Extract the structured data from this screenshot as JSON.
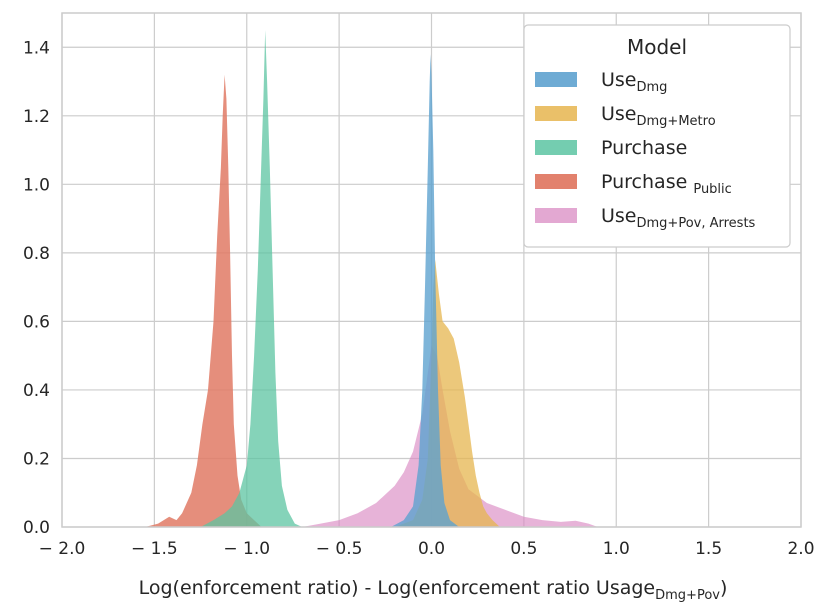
{
  "chart_data": {
    "type": "area",
    "subtype": "kde-density",
    "title": "",
    "xlabel": {
      "main": "Log(enforcement ratio) - Log(enforcement ratio Usage",
      "sub": "Dmg+Pov",
      "suffix": ")"
    },
    "ylabel": "",
    "xlim": [
      -2.0,
      2.0
    ],
    "ylim": [
      0.0,
      1.5
    ],
    "xticks": [
      -2.0,
      -1.5,
      -1.0,
      -0.5,
      0.0,
      0.5,
      1.0,
      1.5,
      2.0
    ],
    "xtick_labels": [
      "− 2.0",
      "− 1.5",
      "− 1.0",
      "− 0.5",
      "0.0",
      "0.5",
      "1.0",
      "1.5",
      "2.0"
    ],
    "yticks": [
      0.0,
      0.2,
      0.4,
      0.6,
      0.8,
      1.0,
      1.2,
      1.4
    ],
    "ytick_labels": [
      "0.0",
      "0.2",
      "0.4",
      "0.6",
      "0.8",
      "1.0",
      "1.2",
      "1.4"
    ],
    "grid": true,
    "legend": {
      "title": "Model",
      "placement": "top-right"
    },
    "series": [
      {
        "name": "Use",
        "name_sub": "Dmg+Pov, Arrests",
        "name_sep": "",
        "color": "#DA8BC3",
        "opacity": 0.65,
        "points": [
          [
            -0.7,
            0.0
          ],
          [
            -0.6,
            0.01
          ],
          [
            -0.5,
            0.02
          ],
          [
            -0.4,
            0.04
          ],
          [
            -0.3,
            0.07
          ],
          [
            -0.2,
            0.12
          ],
          [
            -0.15,
            0.16
          ],
          [
            -0.1,
            0.22
          ],
          [
            -0.05,
            0.33
          ],
          [
            -0.02,
            0.45
          ],
          [
            0.0,
            0.53
          ],
          [
            0.03,
            0.5
          ],
          [
            0.06,
            0.4
          ],
          [
            0.1,
            0.28
          ],
          [
            0.15,
            0.17
          ],
          [
            0.2,
            0.11
          ],
          [
            0.3,
            0.07
          ],
          [
            0.4,
            0.05
          ],
          [
            0.5,
            0.03
          ],
          [
            0.6,
            0.02
          ],
          [
            0.7,
            0.015
          ],
          [
            0.78,
            0.018
          ],
          [
            0.85,
            0.01
          ],
          [
            0.9,
            0.0
          ]
        ]
      },
      {
        "name": "Use",
        "name_sub": "Dmg+Metro",
        "name_sep": "",
        "color": "#E6B54F",
        "opacity": 0.75,
        "points": [
          [
            -0.2,
            0.0
          ],
          [
            -0.1,
            0.02
          ],
          [
            -0.05,
            0.08
          ],
          [
            -0.02,
            0.2
          ],
          [
            0.0,
            0.5
          ],
          [
            0.01,
            0.7
          ],
          [
            0.02,
            0.78
          ],
          [
            0.04,
            0.68
          ],
          [
            0.06,
            0.6
          ],
          [
            0.09,
            0.58
          ],
          [
            0.12,
            0.55
          ],
          [
            0.15,
            0.48
          ],
          [
            0.18,
            0.38
          ],
          [
            0.2,
            0.3
          ],
          [
            0.22,
            0.22
          ],
          [
            0.24,
            0.15
          ],
          [
            0.26,
            0.1
          ],
          [
            0.28,
            0.06
          ],
          [
            0.3,
            0.04
          ],
          [
            0.33,
            0.02
          ],
          [
            0.37,
            0.0
          ]
        ]
      },
      {
        "name": "Purchase",
        "name_sub": "Public",
        "name_sep": " ",
        "color": "#E07A65",
        "opacity": 0.85,
        "points": [
          [
            -1.55,
            0.0
          ],
          [
            -1.48,
            0.01
          ],
          [
            -1.42,
            0.03
          ],
          [
            -1.38,
            0.02
          ],
          [
            -1.35,
            0.04
          ],
          [
            -1.3,
            0.1
          ],
          [
            -1.27,
            0.18
          ],
          [
            -1.24,
            0.3
          ],
          [
            -1.21,
            0.4
          ],
          [
            -1.18,
            0.6
          ],
          [
            -1.16,
            0.85
          ],
          [
            -1.14,
            1.05
          ],
          [
            -1.13,
            1.2
          ],
          [
            -1.12,
            1.32
          ],
          [
            -1.11,
            1.25
          ],
          [
            -1.1,
            1.05
          ],
          [
            -1.09,
            0.8
          ],
          [
            -1.08,
            0.5
          ],
          [
            -1.07,
            0.3
          ],
          [
            -1.05,
            0.15
          ],
          [
            -1.03,
            0.08
          ],
          [
            -1.0,
            0.04
          ],
          [
            -0.96,
            0.02
          ],
          [
            -0.92,
            0.0
          ]
        ]
      },
      {
        "name": "Purchase",
        "name_sub": "",
        "name_sep": "",
        "color": "#5CC4A2",
        "opacity": 0.75,
        "points": [
          [
            -1.25,
            0.0
          ],
          [
            -1.18,
            0.02
          ],
          [
            -1.12,
            0.04
          ],
          [
            -1.08,
            0.06
          ],
          [
            -1.04,
            0.1
          ],
          [
            -1.0,
            0.18
          ],
          [
            -0.98,
            0.3
          ],
          [
            -0.96,
            0.5
          ],
          [
            -0.94,
            0.75
          ],
          [
            -0.925,
            1.0
          ],
          [
            -0.91,
            1.25
          ],
          [
            -0.9,
            1.45
          ],
          [
            -0.89,
            1.3
          ],
          [
            -0.875,
            1.05
          ],
          [
            -0.86,
            0.75
          ],
          [
            -0.845,
            0.45
          ],
          [
            -0.83,
            0.25
          ],
          [
            -0.81,
            0.12
          ],
          [
            -0.78,
            0.05
          ],
          [
            -0.74,
            0.01
          ],
          [
            -0.7,
            0.0
          ]
        ]
      },
      {
        "name": "Use",
        "name_sub": "Dmg",
        "name_sep": "",
        "color": "#5EA2CF",
        "opacity": 0.8,
        "points": [
          [
            -0.22,
            0.0
          ],
          [
            -0.15,
            0.02
          ],
          [
            -0.1,
            0.06
          ],
          [
            -0.07,
            0.18
          ],
          [
            -0.05,
            0.4
          ],
          [
            -0.035,
            0.7
          ],
          [
            -0.02,
            1.05
          ],
          [
            -0.01,
            1.3
          ],
          [
            -0.005,
            1.38
          ],
          [
            0.0,
            1.32
          ],
          [
            0.01,
            1.1
          ],
          [
            0.02,
            0.75
          ],
          [
            0.035,
            0.4
          ],
          [
            0.05,
            0.18
          ],
          [
            0.07,
            0.07
          ],
          [
            0.1,
            0.02
          ],
          [
            0.15,
            0.0
          ]
        ]
      }
    ],
    "legend_order": [
      4,
      1,
      3,
      2,
      0
    ]
  }
}
